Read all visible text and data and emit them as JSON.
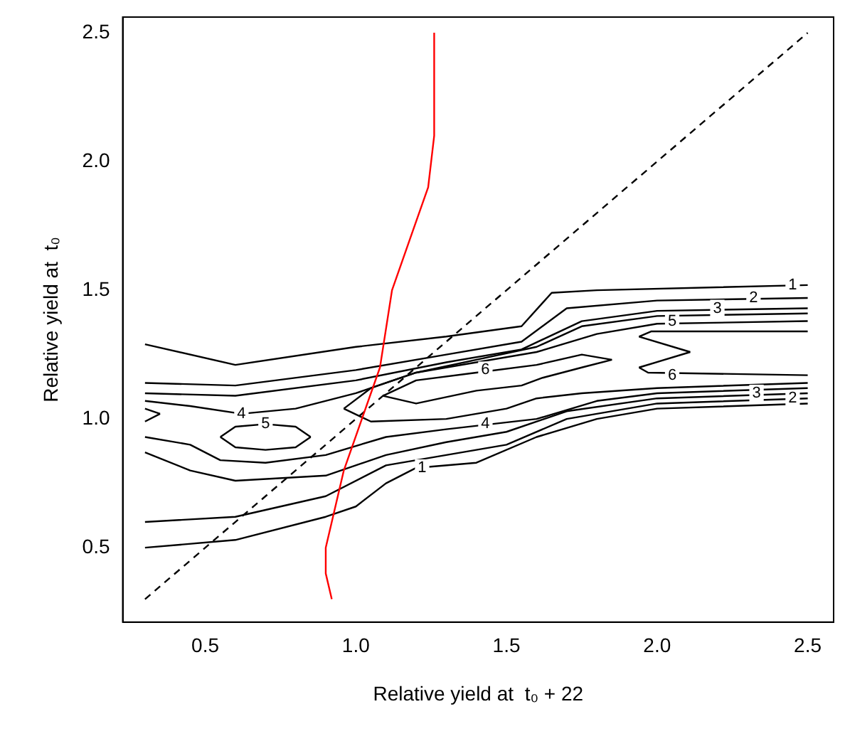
{
  "chart_data": {
    "type": "line",
    "xlabel": "Relative yield at  t₀ + 22",
    "ylabel": "Relative yield at  t₀",
    "xlim": [
      0.226,
      2.586
    ],
    "ylim": [
      0.211,
      2.561
    ],
    "xticks": [
      0.5,
      {
        "value": 1,
        "label": "1.0"
      },
      1.5,
      {
        "value": 2,
        "label": "2.0"
      },
      2.5
    ],
    "yticks": [
      0.5,
      {
        "value": 1,
        "label": "1.0"
      },
      1.5,
      {
        "value": 2,
        "label": "2.0"
      },
      2.5
    ],
    "grid": false,
    "legend": false,
    "marker": "none",
    "series": [
      {
        "color": "#000000",
        "x": [
          0.3,
          0.6,
          1.0,
          1.3,
          1.55,
          1.65,
          1.8,
          2.5
        ],
        "values": [
          1.29,
          1.21,
          1.28,
          1.32,
          1.36,
          1.49,
          1.5,
          1.52
        ]
      },
      {
        "color": "#000000",
        "x": [
          0.3,
          0.6,
          1.0,
          1.3,
          1.55,
          1.7,
          2.0,
          2.5
        ],
        "values": [
          1.14,
          1.13,
          1.19,
          1.25,
          1.3,
          1.43,
          1.46,
          1.47
        ]
      },
      {
        "color": "#000000",
        "x": [
          0.3,
          0.6,
          1.0,
          1.3,
          1.55,
          1.75,
          2.0,
          2.5
        ],
        "values": [
          1.1,
          1.09,
          1.15,
          1.22,
          1.27,
          1.38,
          1.42,
          1.43
        ]
      },
      {
        "color": "#000000",
        "x": [
          0.3,
          0.45,
          0.62,
          0.8,
          1.0,
          1.2,
          1.4,
          1.6,
          1.75,
          2.0,
          2.5
        ],
        "values": [
          1.07,
          1.05,
          1.02,
          1.04,
          1.1,
          1.18,
          1.23,
          1.28,
          1.36,
          1.4,
          1.41
        ]
      },
      {
        "color": "#000000",
        "x": [
          0.96,
          1.05,
          1.2,
          1.4,
          1.6,
          1.8,
          2.0,
          2.5
        ],
        "values": [
          1.04,
          1.12,
          1.18,
          1.22,
          1.26,
          1.33,
          1.37,
          1.38
        ]
      },
      {
        "color": "#000000",
        "x": [
          0.96,
          1.05,
          1.3,
          1.5,
          1.6,
          1.75,
          2.0,
          2.5
        ],
        "values": [
          1.04,
          0.99,
          1.0,
          1.04,
          1.08,
          1.1,
          1.12,
          1.14
        ]
      },
      {
        "color": "#000000",
        "x": [
          1.94,
          1.98,
          2.5
        ],
        "values": [
          1.32,
          1.34,
          1.34
        ]
      },
      {
        "color": "#000000",
        "x": [
          1.94,
          2.11
        ],
        "values": [
          1.32,
          1.26
        ]
      },
      {
        "color": "#000000",
        "x": [
          1.94,
          2.11
        ],
        "values": [
          1.2,
          1.26
        ]
      },
      {
        "color": "#000000",
        "x": [
          1.94,
          1.97,
          2.5
        ],
        "values": [
          1.2,
          1.18,
          1.17
        ]
      },
      {
        "color": "#000000",
        "x": [
          1.09,
          1.2,
          1.4,
          1.6,
          1.75,
          1.85
        ],
        "values": [
          1.09,
          1.15,
          1.18,
          1.21,
          1.25,
          1.23
        ]
      },
      {
        "color": "#000000",
        "x": [
          1.09,
          1.2,
          1.4,
          1.55,
          1.62,
          1.75,
          1.85
        ],
        "values": [
          1.09,
          1.06,
          1.11,
          1.13,
          1.16,
          1.2,
          1.23
        ]
      },
      {
        "color": "#000000",
        "x": [
          0.55,
          0.6,
          0.7,
          0.8,
          0.85
        ],
        "values": [
          0.93,
          0.97,
          0.98,
          0.97,
          0.93
        ]
      },
      {
        "color": "#000000",
        "x": [
          0.55,
          0.6,
          0.7,
          0.8,
          0.85
        ],
        "values": [
          0.93,
          0.89,
          0.88,
          0.89,
          0.93
        ]
      },
      {
        "color": "#000000",
        "x": [
          0.3,
          0.35
        ],
        "values": [
          1.04,
          1.02
        ]
      },
      {
        "color": "#000000",
        "x": [
          0.3,
          0.35
        ],
        "values": [
          0.99,
          1.02
        ]
      },
      {
        "color": "#000000",
        "x": [
          0.3,
          0.45,
          0.55,
          0.7,
          0.9,
          1.1,
          1.3,
          1.6,
          1.8,
          2.0,
          2.5
        ],
        "values": [
          0.93,
          0.9,
          0.84,
          0.83,
          0.86,
          0.93,
          0.96,
          1.0,
          1.07,
          1.1,
          1.12
        ]
      },
      {
        "color": "#000000",
        "x": [
          0.3,
          0.45,
          0.6,
          0.9,
          1.1,
          1.3,
          1.5,
          1.7,
          2.0,
          2.5
        ],
        "values": [
          0.87,
          0.8,
          0.76,
          0.78,
          0.86,
          0.91,
          0.95,
          1.03,
          1.08,
          1.1
        ]
      },
      {
        "color": "#000000",
        "x": [
          0.3,
          0.6,
          0.9,
          1.1,
          1.3,
          1.5,
          1.7,
          2.0,
          2.5
        ],
        "values": [
          0.6,
          0.62,
          0.7,
          0.82,
          0.86,
          0.9,
          1.0,
          1.06,
          1.08
        ]
      },
      {
        "color": "#000000",
        "x": [
          0.3,
          0.6,
          0.9,
          1.0,
          1.1,
          1.2,
          1.4,
          1.6,
          1.8,
          2.0,
          2.5
        ],
        "values": [
          0.5,
          0.53,
          0.62,
          0.66,
          0.75,
          0.81,
          0.83,
          0.93,
          1.0,
          1.04,
          1.06
        ]
      },
      {
        "color": "#000000",
        "line_style": "dashed",
        "x": [
          0.3,
          2.5
        ],
        "values": [
          0.3,
          2.5
        ]
      },
      {
        "color": "#ff0000",
        "x": [
          0.92,
          0.9,
          0.9,
          0.92,
          0.96,
          1.02,
          1.08,
          1.12,
          1.18,
          1.24,
          1.26,
          1.26
        ],
        "values": [
          0.3,
          0.4,
          0.5,
          0.6,
          0.8,
          1.0,
          1.2,
          1.5,
          1.7,
          1.9,
          2.1,
          2.5
        ]
      }
    ],
    "annotations": [
      {
        "text": "1",
        "x": 2.45,
        "y": 1.52
      },
      {
        "text": "2",
        "x": 2.32,
        "y": 1.47
      },
      {
        "text": "3",
        "x": 2.2,
        "y": 1.43
      },
      {
        "text": "5",
        "x": 2.05,
        "y": 1.38
      },
      {
        "text": "6",
        "x": 2.05,
        "y": 1.17
      },
      {
        "text": "3",
        "x": 2.33,
        "y": 1.1
      },
      {
        "text": "2",
        "x": 2.45,
        "y": 1.08
      },
      {
        "text": "6",
        "x": 1.43,
        "y": 1.19
      },
      {
        "text": "4",
        "x": 1.43,
        "y": 0.98
      },
      {
        "text": "4",
        "x": 0.62,
        "y": 1.02
      },
      {
        "text": "5",
        "x": 0.7,
        "y": 0.98
      },
      {
        "text": "1",
        "x": 1.22,
        "y": 0.81
      }
    ]
  }
}
